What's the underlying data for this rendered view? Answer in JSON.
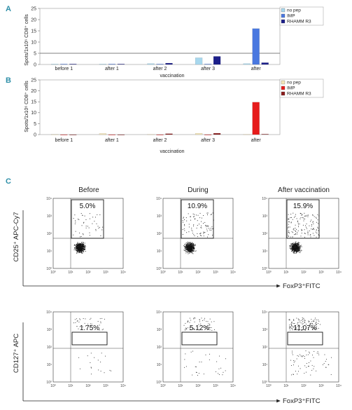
{
  "panels": {
    "A": "A",
    "B": "B",
    "C": "C"
  },
  "chart_data": [
    {
      "id": "A",
      "type": "bar",
      "ylabel": "Spots/1x10⁶ CD8⁺ cells",
      "xlabel": "vaccination",
      "yticks": [
        0,
        5,
        10,
        15,
        20,
        25
      ],
      "ylim": [
        0,
        25
      ],
      "grid": false,
      "reference_line": 5,
      "legend_position": "top-right",
      "categories": [
        "before 1",
        "after 1",
        "after 2",
        "after 3",
        "after"
      ],
      "series": [
        {
          "name": "no pep",
          "color": "#a8d8ee",
          "values": [
            0.2,
            0.2,
            0.4,
            3.0,
            0.4
          ]
        },
        {
          "name": "IMP",
          "color": "#4a78e0",
          "values": [
            0.2,
            0.2,
            0.2,
            0.2,
            16.0
          ]
        },
        {
          "name": "RHAMM R3",
          "color": "#1c1f8a",
          "values": [
            0.2,
            0.2,
            0.6,
            3.6,
            0.8
          ]
        }
      ]
    },
    {
      "id": "B",
      "type": "bar",
      "ylabel": "Spots/1x10⁶ CD8⁺ cells",
      "xlabel": "vaccination",
      "yticks": [
        0,
        5,
        10,
        15,
        20,
        25
      ],
      "ylim": [
        0,
        25
      ],
      "grid": false,
      "legend_position": "top-right",
      "categories": [
        "before 1",
        "after 1",
        "after 2",
        "after 3",
        "after"
      ],
      "series": [
        {
          "name": "no pep",
          "color": "#f4e6b8",
          "values": [
            0.05,
            0.5,
            0.1,
            0.6,
            0.1
          ]
        },
        {
          "name": "IMP",
          "color": "#e61c1c",
          "values": [
            0.0,
            0.0,
            0.0,
            0.0,
            14.8
          ]
        },
        {
          "name": "RHAMM R3",
          "color": "#8a1c1c",
          "values": [
            0.0,
            0.0,
            0.4,
            0.6,
            0.2
          ]
        }
      ]
    },
    {
      "id": "C",
      "type": "scatter",
      "columns": [
        "Before",
        "During",
        "After vaccination"
      ],
      "x_axis_label": "FoxP3⁺FITC",
      "x_ticks": [
        "10⁰",
        "10¹",
        "10²",
        "10³",
        "10⁴"
      ],
      "y_ticks": [
        "10⁰",
        "10¹",
        "10²",
        "10³",
        "10⁴"
      ],
      "rows": [
        {
          "y_axis_label": "CD25⁺ APC-Cy7",
          "gate_percentages": [
            "5.0%",
            "10.9%",
            "15.9%"
          ]
        },
        {
          "y_axis_label": "CD127⁺ APC",
          "gate_percentages": [
            "1.75%",
            "5.12%",
            "11.07%"
          ]
        }
      ]
    }
  ]
}
